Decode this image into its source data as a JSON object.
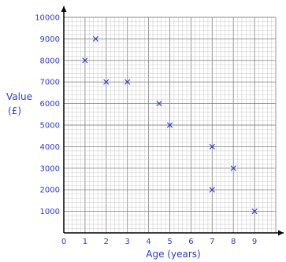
{
  "chart_data": {
    "type": "scatter",
    "xlabel": "Age (years)",
    "ylabel": [
      "Value",
      "(£)"
    ],
    "xlim": [
      0,
      10
    ],
    "ylim": [
      0,
      10000
    ],
    "x_ticks": [
      "0",
      "1",
      "2",
      "3",
      "4",
      "5",
      "6",
      "7",
      "8",
      "9"
    ],
    "y_ticks": [
      "1000",
      "2000",
      "3000",
      "4000",
      "5000",
      "6000",
      "7000",
      "8000",
      "9000",
      "10000"
    ],
    "grid": true,
    "marker": "cross",
    "points": [
      {
        "x": 1,
        "y": 8000
      },
      {
        "x": 1.5,
        "y": 9000
      },
      {
        "x": 2,
        "y": 7000
      },
      {
        "x": 3,
        "y": 7000
      },
      {
        "x": 4.5,
        "y": 6000
      },
      {
        "x": 5,
        "y": 5000
      },
      {
        "x": 7,
        "y": 4000
      },
      {
        "x": 7,
        "y": 2000
      },
      {
        "x": 8,
        "y": 3000
      },
      {
        "x": 9,
        "y": 1000
      }
    ],
    "colors": {
      "text": "#2b3cd6",
      "marker": "#2b3cd6",
      "grid_minor": "#c8c8c8",
      "grid_major": "#8c8c8c",
      "axis": "#000000"
    }
  }
}
